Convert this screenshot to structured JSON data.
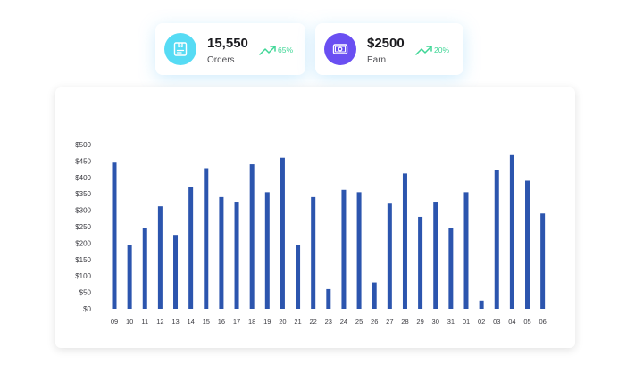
{
  "stats": {
    "orders": {
      "value": "15,550",
      "label": "Orders",
      "trend": "65%",
      "icon": "package-icon",
      "icon_color": "#56dbf4"
    },
    "earn": {
      "value": "$2500",
      "label": "Earn",
      "trend": "20%",
      "icon": "banknote-icon",
      "icon_color": "#6a4ff2"
    },
    "trend_icon": "trending-up-icon",
    "trend_color": "#3fd696"
  },
  "chart_data": {
    "type": "bar",
    "color": "#2c55ae",
    "categories": [
      "09",
      "10",
      "11",
      "12",
      "13",
      "14",
      "15",
      "16",
      "17",
      "18",
      "19",
      "20",
      "21",
      "22",
      "23",
      "24",
      "25",
      "26",
      "27",
      "28",
      "29",
      "30",
      "31",
      "01",
      "02",
      "03",
      "04",
      "05",
      "06"
    ],
    "values": [
      445,
      195,
      245,
      312,
      225,
      370,
      428,
      340,
      326,
      440,
      355,
      460,
      195,
      340,
      60,
      362,
      355,
      80,
      320,
      412,
      280,
      326,
      245,
      355,
      25,
      422,
      468,
      390,
      290
    ],
    "yticks": [
      "$500",
      "$450",
      "$400",
      "$350",
      "$300",
      "$250",
      "$200",
      "$150",
      "$100",
      "$50",
      "$0"
    ],
    "ylim": [
      0,
      500
    ],
    "grid": false,
    "title": "",
    "xlabel": "",
    "ylabel": ""
  }
}
